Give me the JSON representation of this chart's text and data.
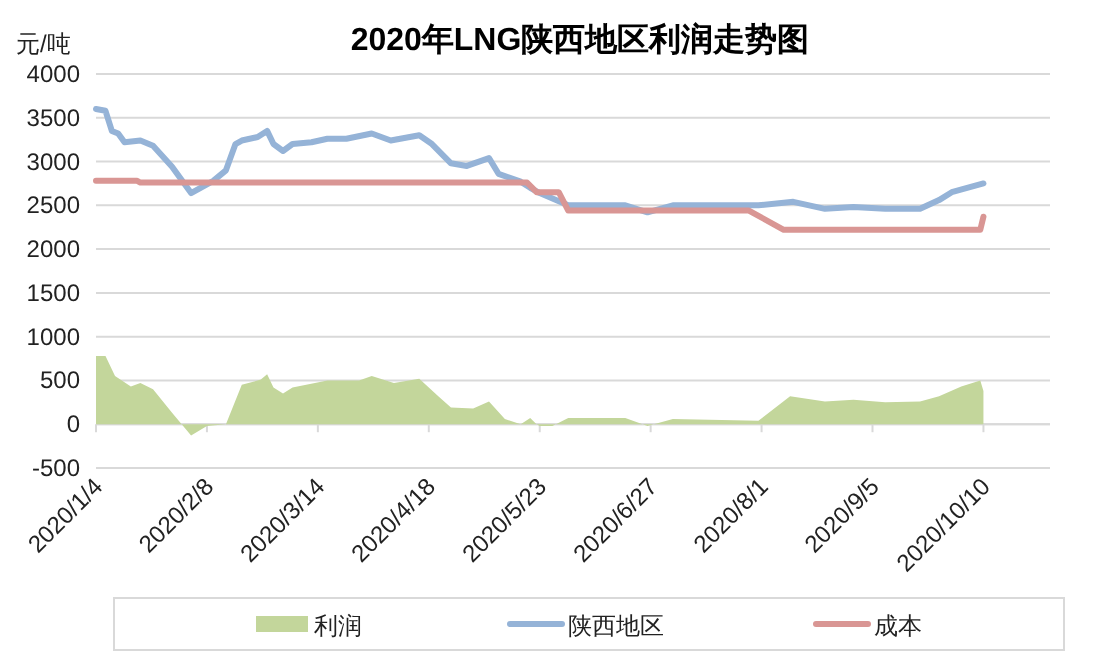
{
  "chart_data": {
    "type": "line",
    "title": "2020年LNG陕西地区利润走势图",
    "ylabel": "元/吨",
    "xlim": [
      "2020-01-04",
      "2020-10-31"
    ],
    "xticks": [
      {
        "value": "2020-01-04",
        "label": "2020/1/4"
      },
      {
        "value": "2020-02-08",
        "label": "2020/2/8"
      },
      {
        "value": "2020-03-14",
        "label": "2020/3/14"
      },
      {
        "value": "2020-04-18",
        "label": "2020/4/18"
      },
      {
        "value": "2020-05-23",
        "label": "2020/5/23"
      },
      {
        "value": "2020-06-27",
        "label": "2020/6/27"
      },
      {
        "value": "2020-08-01",
        "label": "2020/8/1"
      },
      {
        "value": "2020-09-05",
        "label": "2020/9/5"
      },
      {
        "value": "2020-10-10",
        "label": "2020/10/10"
      }
    ],
    "ylim": [
      -500,
      4000
    ],
    "yticks": [
      -500,
      0,
      500,
      1000,
      1500,
      2000,
      2500,
      3000,
      3500,
      4000
    ],
    "grid": "y",
    "legend": "bottom",
    "series": [
      {
        "name": "利润",
        "type": "area",
        "color": "#c3d69b",
        "x": [
          "2020-01-04",
          "2020-01-07",
          "2020-01-10",
          "2020-01-15",
          "2020-01-18",
          "2020-01-22",
          "2020-01-28",
          "2020-02-03",
          "2020-02-08",
          "2020-02-14",
          "2020-02-19",
          "2020-02-25",
          "2020-02-27",
          "2020-02-29",
          "2020-03-03",
          "2020-03-06",
          "2020-03-17",
          "2020-03-27",
          "2020-03-31",
          "2020-04-07",
          "2020-04-15",
          "2020-04-21",
          "2020-04-25",
          "2020-05-02",
          "2020-05-07",
          "2020-05-12",
          "2020-05-17",
          "2020-05-20",
          "2020-05-22",
          "2020-05-23",
          "2020-05-27",
          "2020-06-01",
          "2020-06-19",
          "2020-06-26",
          "2020-07-04",
          "2020-07-31",
          "2020-08-10",
          "2020-08-21",
          "2020-08-30",
          "2020-09-09",
          "2020-09-20",
          "2020-09-26",
          "2020-10-03",
          "2020-10-09",
          "2020-10-10"
        ],
        "values": [
          780,
          780,
          550,
          430,
          470,
          400,
          130,
          -130,
          -20,
          0,
          450,
          510,
          570,
          420,
          350,
          420,
          500,
          500,
          550,
          470,
          520,
          320,
          190,
          180,
          260,
          60,
          0,
          70,
          0,
          -20,
          -20,
          70,
          70,
          -20,
          60,
          40,
          320,
          260,
          280,
          250,
          260,
          320,
          430,
          500,
          380
        ]
      },
      {
        "name": "陕西地区",
        "color": "#95b3d7",
        "x": [
          "2020-01-04",
          "2020-01-07",
          "2020-01-09",
          "2020-01-11",
          "2020-01-13",
          "2020-01-18",
          "2020-01-22",
          "2020-01-28",
          "2020-02-03",
          "2020-02-10",
          "2020-02-14",
          "2020-02-17",
          "2020-02-19",
          "2020-02-24",
          "2020-02-27",
          "2020-02-29",
          "2020-03-03",
          "2020-03-06",
          "2020-03-12",
          "2020-03-17",
          "2020-03-23",
          "2020-03-31",
          "2020-04-06",
          "2020-04-15",
          "2020-04-19",
          "2020-04-25",
          "2020-04-30",
          "2020-05-07",
          "2020-05-10",
          "2020-05-17",
          "2020-05-20",
          "2020-05-23",
          "2020-06-01",
          "2020-06-19",
          "2020-06-26",
          "2020-07-04",
          "2020-07-31",
          "2020-08-11",
          "2020-08-21",
          "2020-08-30",
          "2020-09-09",
          "2020-09-20",
          "2020-09-26",
          "2020-09-30",
          "2020-10-10"
        ],
        "values": [
          3600,
          3580,
          3350,
          3320,
          3220,
          3240,
          3180,
          2940,
          2640,
          2780,
          2900,
          3200,
          3240,
          3280,
          3350,
          3200,
          3120,
          3200,
          3220,
          3260,
          3260,
          3320,
          3240,
          3300,
          3200,
          2980,
          2950,
          3040,
          2860,
          2770,
          2700,
          2640,
          2500,
          2500,
          2420,
          2500,
          2500,
          2540,
          2460,
          2480,
          2460,
          2460,
          2560,
          2650,
          2750
        ]
      },
      {
        "name": "成本",
        "color": "#d99694",
        "x": [
          "2020-01-04",
          "2020-01-17",
          "2020-01-18",
          "2020-05-19",
          "2020-05-22",
          "2020-05-29",
          "2020-06-01",
          "2020-07-28",
          "2020-08-08",
          "2020-10-09",
          "2020-10-10"
        ],
        "values": [
          2780,
          2780,
          2760,
          2760,
          2650,
          2650,
          2440,
          2440,
          2220,
          2220,
          2370
        ]
      }
    ]
  }
}
